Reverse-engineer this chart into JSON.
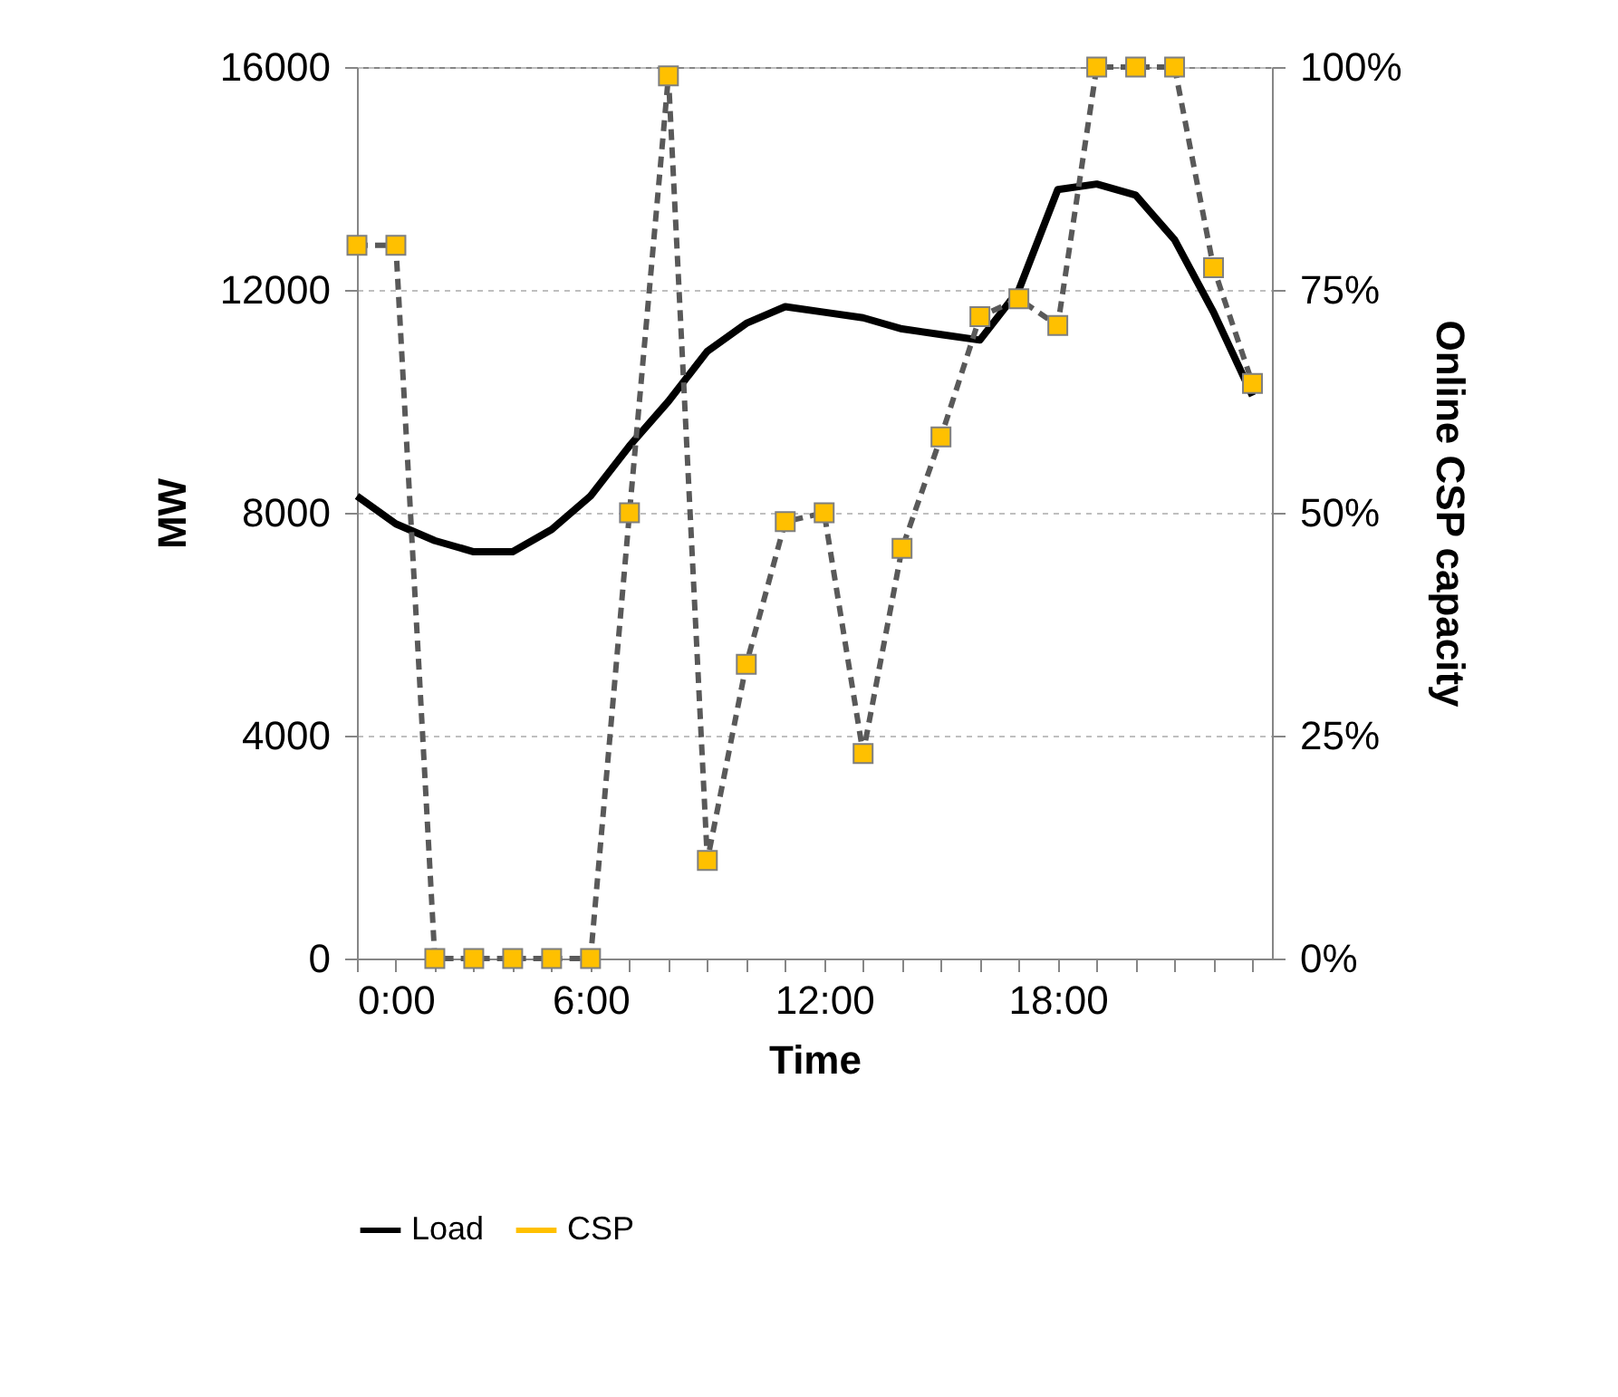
{
  "chart_data": {
    "type": "line",
    "xlabel": "Time",
    "ylabel": "MW",
    "y2label": "Online CSP capacity",
    "x": [
      0,
      1,
      2,
      3,
      4,
      5,
      6,
      7,
      8,
      9,
      10,
      11,
      12,
      13,
      14,
      15,
      16,
      17,
      18,
      19,
      20,
      21,
      22,
      23
    ],
    "xlim": [
      0,
      23.5
    ],
    "xticks": [
      {
        "value": 0,
        "label": "0:00"
      },
      {
        "value": 1,
        "label": null
      },
      {
        "value": 2,
        "label": null
      },
      {
        "value": 3,
        "label": null
      },
      {
        "value": 4,
        "label": null
      },
      {
        "value": 5,
        "label": null
      },
      {
        "value": 6,
        "label": "6:00"
      },
      {
        "value": 7,
        "label": null
      },
      {
        "value": 8,
        "label": null
      },
      {
        "value": 9,
        "label": null
      },
      {
        "value": 10,
        "label": null
      },
      {
        "value": 11,
        "label": null
      },
      {
        "value": 12,
        "label": "12:00"
      },
      {
        "value": 13,
        "label": null
      },
      {
        "value": 14,
        "label": null
      },
      {
        "value": 15,
        "label": null
      },
      {
        "value": 16,
        "label": null
      },
      {
        "value": 17,
        "label": null
      },
      {
        "value": 18,
        "label": "18:00"
      },
      {
        "value": 19,
        "label": null
      },
      {
        "value": 20,
        "label": null
      },
      {
        "value": 21,
        "label": null
      },
      {
        "value": 22,
        "label": null
      },
      {
        "value": 23,
        "label": null
      }
    ],
    "ylim": [
      0,
      16000
    ],
    "yticks": [
      0,
      4000,
      8000,
      12000,
      16000
    ],
    "y2lim": [
      0,
      100
    ],
    "y2ticks": [
      {
        "value": 0,
        "label": "0%"
      },
      {
        "value": 25,
        "label": "25%"
      },
      {
        "value": 50,
        "label": "50%"
      },
      {
        "value": 75,
        "label": "75%"
      },
      {
        "value": 100,
        "label": "100%"
      }
    ],
    "grid": "y",
    "legend": "bottom",
    "series": [
      {
        "name": "Load",
        "color": "#000000",
        "marker": "none",
        "line_style": "solid",
        "values": [
          8300,
          7800,
          7500,
          7300,
          7300,
          7700,
          8300,
          9200,
          10000,
          10900,
          11400,
          11700,
          11600,
          11500,
          11300,
          11200,
          11100,
          12000,
          13800,
          13900,
          13700,
          12900,
          11600,
          10100
        ]
      },
      {
        "name": "CSP",
        "color": "#ffc000",
        "axis": "y2",
        "marker": "square",
        "line_style": "dashed",
        "values": [
          80,
          80,
          0,
          0,
          0,
          0,
          0,
          50,
          99,
          11,
          33,
          49,
          50,
          23,
          46,
          58.5,
          72,
          74,
          71,
          100,
          100,
          100,
          77.5,
          64.5
        ]
      }
    ]
  }
}
